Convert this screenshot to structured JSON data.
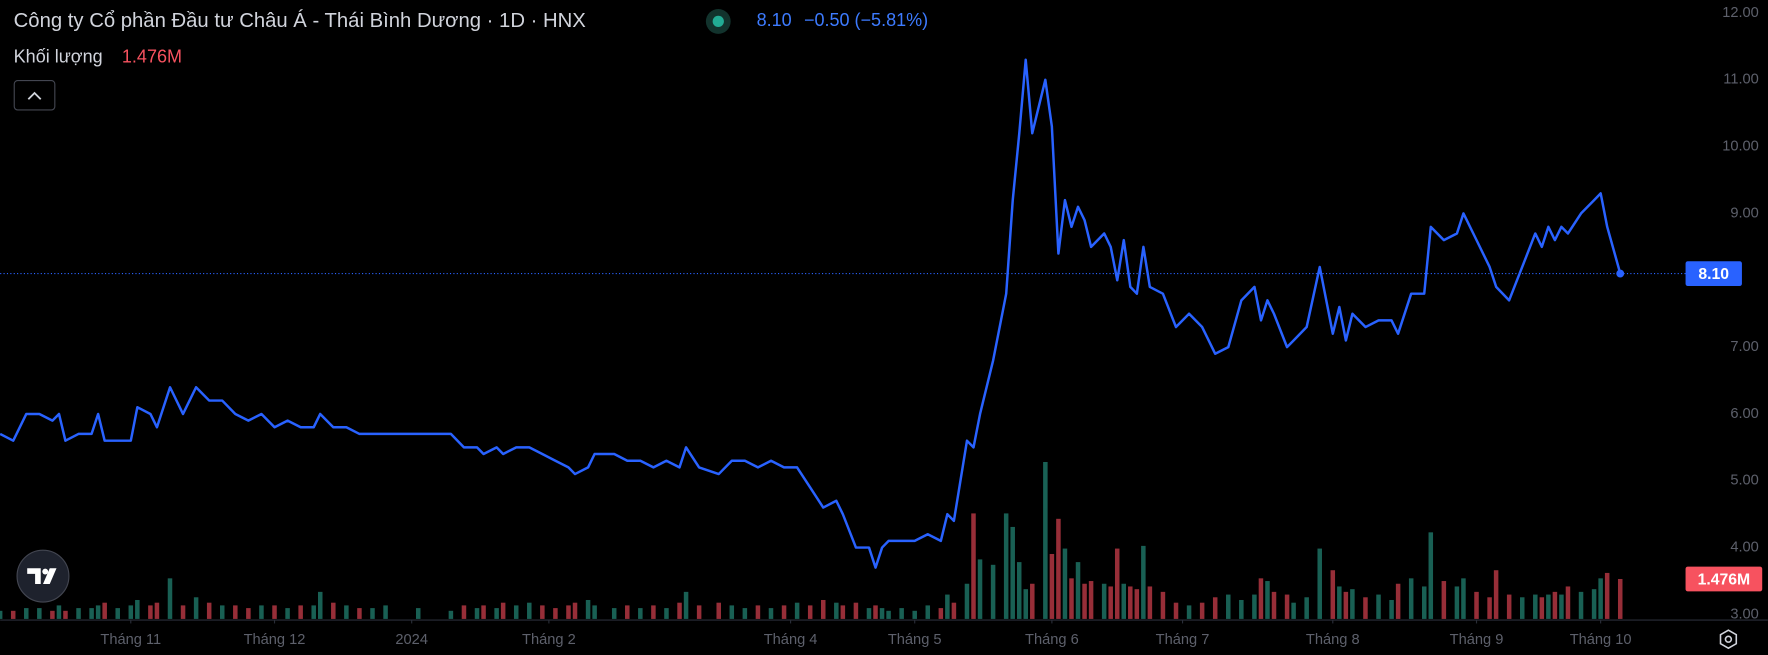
{
  "chart_data": {
    "type": "line",
    "title": "Công ty Cổ phần Đầu tư Châu Á - Thái Bình Dương · 1D · HNX",
    "price_label": "8.10",
    "change_label": "−0.50 (−5.81%)",
    "volume_label": "1.476M",
    "x": [
      0,
      2,
      4,
      6,
      8,
      9,
      10,
      12,
      14,
      15,
      16,
      18,
      20,
      21,
      23,
      24,
      26,
      28,
      30,
      32,
      34,
      36,
      38,
      40,
      42,
      44,
      46,
      48,
      49,
      51,
      53,
      55,
      57,
      59,
      64,
      69,
      71,
      73,
      74,
      76,
      77,
      79,
      81,
      83,
      85,
      87,
      88,
      90,
      91,
      94,
      96,
      98,
      100,
      102,
      104,
      105,
      107,
      110,
      112,
      114,
      116,
      118,
      120,
      122,
      124,
      126,
      128,
      129,
      131,
      133,
      134,
      135,
      136,
      138,
      140,
      142,
      144,
      145,
      146,
      148,
      149,
      150,
      152,
      154,
      155,
      156,
      157,
      158,
      160,
      161,
      162,
      163,
      164,
      165,
      166,
      167,
      169,
      170,
      171,
      172,
      173,
      174,
      175,
      176,
      178,
      180,
      182,
      184,
      186,
      188,
      190,
      192,
      193,
      194,
      195,
      197,
      198,
      200,
      202,
      204,
      205,
      206,
      207,
      209,
      211,
      213,
      214,
      216,
      218,
      219,
      221,
      223,
      224,
      226,
      228,
      229,
      231,
      233,
      235,
      236,
      237,
      238,
      239,
      240,
      242,
      244,
      245,
      246,
      248
    ],
    "xlim": [
      0,
      258
    ],
    "xticks": [
      {
        "value": 20,
        "label": "Tháng 11"
      },
      {
        "value": 42,
        "label": "Tháng 12"
      },
      {
        "value": 63,
        "label": "2024"
      },
      {
        "value": 84,
        "label": "Tháng 2"
      },
      {
        "value": 121,
        "label": "Tháng 4"
      },
      {
        "value": 140,
        "label": "Tháng 5"
      },
      {
        "value": 161,
        "label": "Tháng 6"
      },
      {
        "value": 181,
        "label": "Tháng 7"
      },
      {
        "value": 204,
        "label": "Tháng 8"
      },
      {
        "value": 226,
        "label": "Tháng 9"
      },
      {
        "value": 245,
        "label": "Tháng 10"
      }
    ],
    "ylim": [
      3,
      12
    ],
    "yticks": [
      {
        "value": 3,
        "label": "3.00"
      },
      {
        "value": 4,
        "label": "4.00"
      },
      {
        "value": 5,
        "label": "5.00"
      },
      {
        "value": 6,
        "label": "6.00"
      },
      {
        "value": 7,
        "label": "7.00"
      },
      {
        "value": 9,
        "label": "9.00"
      },
      {
        "value": 10,
        "label": "10.00"
      },
      {
        "value": 11,
        "label": "11.00"
      },
      {
        "value": 12,
        "label": "12.00"
      }
    ],
    "y2lim": [
      0,
      6
    ],
    "up_color": "#1c6b5e",
    "down_color": "#a8333f",
    "series": [
      {
        "color": "#2962ff",
        "values": [
          5.7,
          5.6,
          6.0,
          6.0,
          5.9,
          6.0,
          5.6,
          5.7,
          5.7,
          6.0,
          5.6,
          5.6,
          5.6,
          6.1,
          6.0,
          5.8,
          6.4,
          6.0,
          6.4,
          6.2,
          6.2,
          6.0,
          5.9,
          6.0,
          5.8,
          5.9,
          5.8,
          5.8,
          6.0,
          5.8,
          5.8,
          5.7,
          5.7,
          5.7,
          5.7,
          5.7,
          5.5,
          5.5,
          5.4,
          5.5,
          5.4,
          5.5,
          5.5,
          5.4,
          5.3,
          5.2,
          5.1,
          5.2,
          5.4,
          5.4,
          5.3,
          5.3,
          5.2,
          5.3,
          5.2,
          5.5,
          5.2,
          5.1,
          5.3,
          5.3,
          5.2,
          5.3,
          5.2,
          5.2,
          4.9,
          4.6,
          4.7,
          4.5,
          4.0,
          4.0,
          3.7,
          4.0,
          4.1,
          4.1,
          4.1,
          4.2,
          4.1,
          4.5,
          4.4,
          5.6,
          5.5,
          6.0,
          6.8,
          7.8,
          9.2,
          10.2,
          11.3,
          10.2,
          11.0,
          10.3,
          8.4,
          9.2,
          8.8,
          9.1,
          8.9,
          8.5,
          8.7,
          8.5,
          8.0,
          8.6,
          7.9,
          7.8,
          8.5,
          7.9,
          7.8,
          7.3,
          7.5,
          7.3,
          6.9,
          7.0,
          7.7,
          7.9,
          7.4,
          7.7,
          7.5,
          7.0,
          7.1,
          7.3,
          8.2,
          7.2,
          7.6,
          7.1,
          7.5,
          7.3,
          7.4,
          7.4,
          7.2,
          7.8,
          7.8,
          8.8,
          8.6,
          8.7,
          9.0,
          8.6,
          8.2,
          7.9,
          7.7,
          8.2,
          8.7,
          8.5,
          8.8,
          8.6,
          8.8,
          8.7,
          9.0,
          9.2,
          9.3,
          8.8,
          8.1
        ]
      },
      {
        "name": "Khối lượng",
        "type": "bar",
        "axis": "y2",
        "values": [
          0.3,
          0.3,
          0.4,
          0.4,
          0.3,
          0.5,
          0.3,
          0.4,
          0.4,
          0.5,
          0.6,
          0.4,
          0.5,
          0.7,
          0.5,
          0.6,
          1.5,
          0.5,
          0.8,
          0.6,
          0.5,
          0.5,
          0.4,
          0.5,
          0.5,
          0.4,
          0.5,
          0.5,
          1.0,
          0.6,
          0.5,
          0.4,
          0.4,
          0.5,
          0.4,
          0.3,
          0.5,
          0.4,
          0.5,
          0.4,
          0.6,
          0.5,
          0.6,
          0.5,
          0.4,
          0.5,
          0.6,
          0.7,
          0.5,
          0.4,
          0.5,
          0.4,
          0.5,
          0.4,
          0.6,
          1.0,
          0.5,
          0.6,
          0.5,
          0.4,
          0.5,
          0.4,
          0.5,
          0.6,
          0.5,
          0.7,
          0.6,
          0.5,
          0.6,
          0.4,
          0.5,
          0.4,
          0.3,
          0.4,
          0.3,
          0.5,
          0.4,
          0.9,
          0.6,
          1.3,
          3.9,
          2.2,
          2.0,
          3.9,
          3.4,
          2.1,
          1.1,
          1.3,
          5.8,
          2.4,
          3.7,
          2.6,
          1.5,
          2.1,
          1.3,
          1.4,
          1.3,
          1.2,
          2.6,
          1.3,
          1.2,
          1.1,
          2.7,
          1.2,
          1.0,
          0.6,
          0.5,
          0.6,
          0.8,
          0.9,
          0.7,
          0.9,
          1.5,
          1.4,
          1.0,
          0.9,
          0.6,
          0.8,
          2.6,
          1.8,
          1.2,
          1.0,
          1.1,
          0.8,
          0.9,
          0.7,
          1.3,
          1.5,
          1.2,
          3.2,
          1.4,
          1.2,
          1.5,
          1.0,
          0.8,
          1.8,
          0.9,
          0.8,
          0.9,
          0.8,
          0.9,
          1.0,
          0.9,
          1.2,
          1.0,
          1.1,
          1.5,
          1.7,
          1.476
        ]
      }
    ]
  }
}
